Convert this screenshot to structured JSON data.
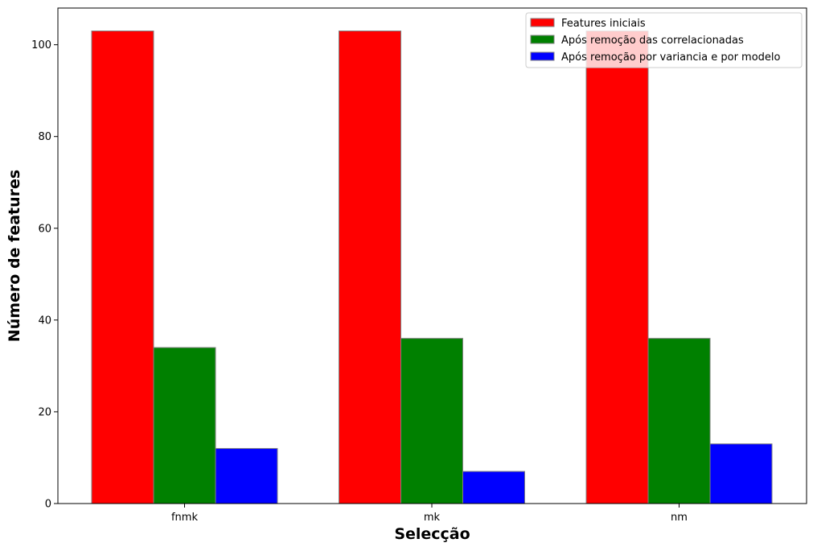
{
  "chart_data": {
    "type": "bar",
    "categories": [
      "fnmk",
      "mk",
      "nm"
    ],
    "series": [
      {
        "name": "Features iniciais",
        "values": [
          103,
          103,
          103
        ],
        "color": "#ff0000"
      },
      {
        "name": "Após remoção das correlacionadas",
        "values": [
          34,
          36,
          36
        ],
        "color": "#008000"
      },
      {
        "name": "Após remoção por variancia e por modelo",
        "values": [
          12,
          7,
          13
        ],
        "color": "#0000ff"
      }
    ],
    "xlabel": "Selecção",
    "ylabel": "Número de features",
    "ylim": [
      0,
      108
    ],
    "yticks": [
      0,
      20,
      40,
      60,
      80,
      100
    ],
    "legend_position": "top-right",
    "grid": false,
    "bar_edge_color": "#808080"
  }
}
